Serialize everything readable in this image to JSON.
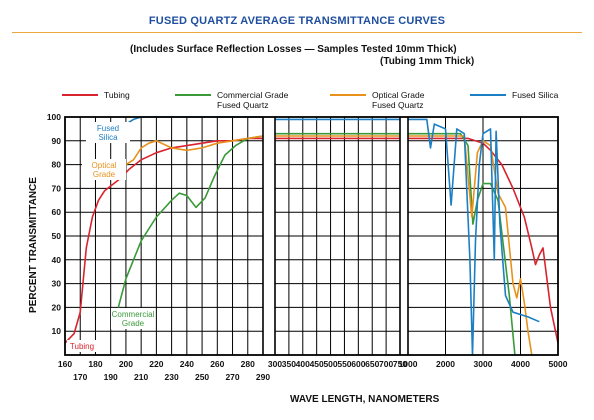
{
  "title": "FUSED QUARTZ AVERAGE TRANSMITTANCE CURVES",
  "subtitle_line1": "(Includes Surface Reflection Losses — Samples Tested 10mm Thick)",
  "subtitle_line2": "(Tubing 1mm Thick)",
  "colors": {
    "tubing": "#d9232e",
    "commercial": "#3a9a3a",
    "optical": "#e8921c",
    "fused_silica": "#1c7fc4",
    "title": "#1f4f9e",
    "rule": "#f0a640"
  },
  "chart_data": {
    "type": "line",
    "xlabel": "WAVE LENGTH, NANOMETERS",
    "ylabel": "PERCENT TRANSMITTANCE",
    "ylim": [
      0,
      100
    ],
    "y_ticks": [
      "10",
      "20",
      "30",
      "40",
      "50",
      "60",
      "70",
      "80",
      "90",
      "100"
    ],
    "grid": true,
    "legend_position": "top",
    "x_axis_note": "axis is segmented: 160–290 nm, 300–750 nm, 1000–5000 nm",
    "x_tick_labels_top": [
      "160",
      "180",
      "200",
      "220",
      "240",
      "260",
      "280",
      "300",
      "350",
      "400",
      "450",
      "500",
      "550",
      "600",
      "650",
      "700",
      "750",
      "1000",
      "2000",
      "3000",
      "4000",
      "5000"
    ],
    "x_tick_labels_bottom": [
      "170",
      "190",
      "210",
      "230",
      "250",
      "270",
      "290"
    ],
    "legend": [
      {
        "key": "tubing",
        "label": "Tubing"
      },
      {
        "key": "commercial",
        "label": "Commercial Grade Fused Quartz"
      },
      {
        "key": "optical",
        "label": "Optical Grade Fused Quartz"
      },
      {
        "key": "fused_silica",
        "label": "Fused Silica"
      }
    ],
    "annotations": [
      {
        "key": "fused_silica",
        "text": "Fused Silica"
      },
      {
        "key": "optical",
        "text": "Optical Grade"
      },
      {
        "key": "commercial",
        "text": "Commercial Grade"
      },
      {
        "key": "tubing",
        "text": "Tubing"
      }
    ],
    "series": [
      {
        "name": "Tubing",
        "key": "tubing",
        "points": [
          [
            160,
            5
          ],
          [
            166,
            9
          ],
          [
            170,
            18
          ],
          [
            174,
            45
          ],
          [
            178,
            58
          ],
          [
            182,
            65
          ],
          [
            186,
            69
          ],
          [
            190,
            71
          ],
          [
            196,
            74
          ],
          [
            202,
            78
          ],
          [
            210,
            82
          ],
          [
            220,
            85
          ],
          [
            230,
            87
          ],
          [
            240,
            88
          ],
          [
            250,
            89
          ],
          [
            260,
            90
          ],
          [
            270,
            90
          ],
          [
            280,
            91
          ],
          [
            290,
            91
          ],
          [
            300,
            91
          ],
          [
            500,
            91
          ],
          [
            750,
            91
          ],
          [
            1000,
            91
          ],
          [
            2000,
            91
          ],
          [
            2600,
            91
          ],
          [
            3000,
            89
          ],
          [
            3200,
            86
          ],
          [
            3500,
            80
          ],
          [
            3800,
            70
          ],
          [
            4100,
            58
          ],
          [
            4300,
            45
          ],
          [
            4400,
            38
          ],
          [
            4500,
            42
          ],
          [
            4600,
            45
          ],
          [
            4800,
            20
          ],
          [
            5000,
            5
          ]
        ]
      },
      {
        "name": "Commercial Grade Fused Quartz",
        "key": "commercial",
        "points": [
          [
            195,
            20
          ],
          [
            200,
            32
          ],
          [
            210,
            48
          ],
          [
            220,
            58
          ],
          [
            230,
            65
          ],
          [
            235,
            68
          ],
          [
            240,
            67
          ],
          [
            246,
            62
          ],
          [
            252,
            66
          ],
          [
            258,
            75
          ],
          [
            265,
            84
          ],
          [
            272,
            88
          ],
          [
            280,
            91
          ],
          [
            290,
            92
          ],
          [
            300,
            93
          ],
          [
            500,
            93
          ],
          [
            750,
            93
          ],
          [
            1000,
            93
          ],
          [
            2000,
            93
          ],
          [
            2400,
            93
          ],
          [
            2600,
            88
          ],
          [
            2730,
            55
          ],
          [
            2850,
            65
          ],
          [
            3000,
            72
          ],
          [
            3200,
            72
          ],
          [
            3400,
            65
          ],
          [
            3700,
            25
          ],
          [
            3850,
            0
          ]
        ]
      },
      {
        "name": "Optical Grade Fused Quartz",
        "key": "optical",
        "points": [
          [
            200,
            80
          ],
          [
            205,
            82
          ],
          [
            210,
            87
          ],
          [
            215,
            89
          ],
          [
            220,
            90
          ],
          [
            230,
            87
          ],
          [
            240,
            86
          ],
          [
            250,
            87
          ],
          [
            260,
            89
          ],
          [
            270,
            90
          ],
          [
            280,
            91
          ],
          [
            290,
            92
          ],
          [
            300,
            92
          ],
          [
            500,
            92
          ],
          [
            750,
            92
          ],
          [
            1000,
            92
          ],
          [
            2000,
            92
          ],
          [
            2500,
            92
          ],
          [
            2700,
            58
          ],
          [
            2850,
            85
          ],
          [
            3000,
            90
          ],
          [
            3200,
            88
          ],
          [
            3400,
            68
          ],
          [
            3600,
            62
          ],
          [
            3800,
            30
          ],
          [
            3900,
            24
          ],
          [
            4000,
            32
          ],
          [
            4100,
            22
          ],
          [
            4200,
            10
          ],
          [
            4300,
            0
          ]
        ]
      },
      {
        "name": "Fused Silica",
        "key": "fused_silica",
        "points": [
          [
            200,
            97
          ],
          [
            205,
            99
          ],
          [
            210,
            100
          ],
          [
            290,
            100
          ],
          [
            300,
            99
          ],
          [
            500,
            99
          ],
          [
            750,
            99
          ],
          [
            1000,
            99
          ],
          [
            1500,
            99
          ],
          [
            1600,
            87
          ],
          [
            1700,
            97
          ],
          [
            2000,
            95
          ],
          [
            2150,
            63
          ],
          [
            2300,
            95
          ],
          [
            2500,
            93
          ],
          [
            2650,
            40
          ],
          [
            2720,
            0
          ],
          [
            2800,
            48
          ],
          [
            2900,
            80
          ],
          [
            3000,
            93
          ],
          [
            3200,
            95
          ],
          [
            3300,
            40
          ],
          [
            3350,
            94
          ],
          [
            3450,
            55
          ],
          [
            3600,
            25
          ],
          [
            3800,
            18
          ],
          [
            4200,
            16
          ],
          [
            4500,
            14
          ]
        ]
      }
    ]
  }
}
